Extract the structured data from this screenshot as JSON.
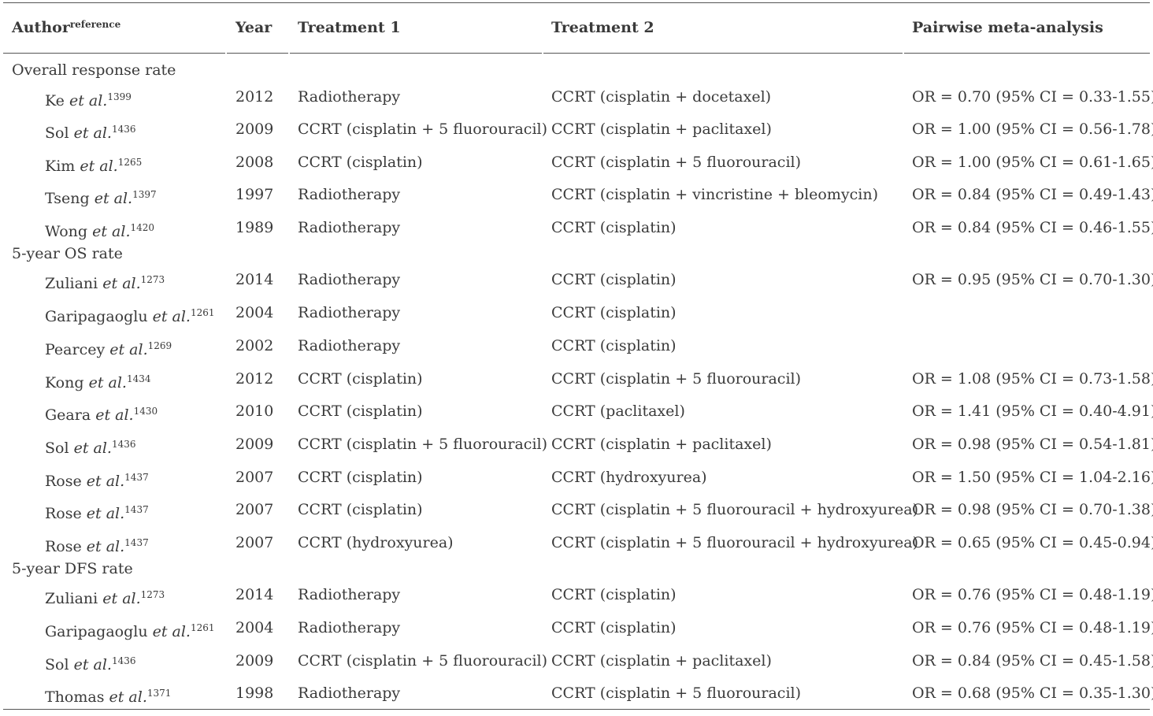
{
  "header": {
    "author": "Author",
    "author_sup": "reference",
    "year": "Year",
    "treatment1": "Treatment 1",
    "treatment2": "Treatment 2",
    "pairwise": "Pairwise meta-analysis"
  },
  "sections": [
    {
      "title": "Overall response rate",
      "rows": [
        {
          "author": "Ke",
          "etal": "et al.",
          "ref": "1399",
          "year": "2012",
          "t1": "Radiotherapy",
          "t2": "CCRT (cisplatin + docetaxel)",
          "pm": "OR = 0.70 (95% CI = 0.33-1.55)"
        },
        {
          "author": "Sol",
          "etal": "et al.",
          "ref": "1436",
          "year": "2009",
          "t1": "CCRT (cisplatin + 5 fluorouracil)",
          "t2": "CCRT (cisplatin + paclitaxel)",
          "pm": "OR = 1.00 (95% CI = 0.56-1.78)"
        },
        {
          "author": "Kim",
          "etal": "et al.",
          "ref": "1265",
          "year": "2008",
          "t1": "CCRT (cisplatin)",
          "t2": "CCRT (cisplatin + 5 fluorouracil)",
          "pm": "OR = 1.00 (95% CI = 0.61-1.65)"
        },
        {
          "author": "Tseng",
          "etal": "et al.",
          "ref": "1397",
          "year": "1997",
          "t1": "Radiotherapy",
          "t2": "CCRT (cisplatin + vincristine + bleomycin)",
          "pm": "OR = 0.84 (95% CI = 0.49-1.43)"
        },
        {
          "author": "Wong",
          "etal": "et al.",
          "ref": "1420",
          "year": "1989",
          "t1": "Radiotherapy",
          "t2": "CCRT (cisplatin)",
          "pm": "OR = 0.84 (95% CI = 0.46-1.55)"
        }
      ]
    },
    {
      "title": "5-year OS rate",
      "rows": [
        {
          "author": "Zuliani",
          "etal": "et al.",
          "ref": "1273",
          "year": "2014",
          "t1": "Radiotherapy",
          "t2": "CCRT (cisplatin)",
          "pm": "OR = 0.95 (95% CI = 0.70-1.30)"
        },
        {
          "author": "Garipagaoglu",
          "etal": "et al.",
          "ref": "1261",
          "year": "2004",
          "t1": "Radiotherapy",
          "t2": "CCRT (cisplatin)",
          "pm": ""
        },
        {
          "author": "Pearcey",
          "etal": "et al.",
          "ref": "1269",
          "year": "2002",
          "t1": "Radiotherapy",
          "t2": "CCRT (cisplatin)",
          "pm": ""
        },
        {
          "author": "Kong",
          "etal": "et al.",
          "ref": "1434",
          "year": "2012",
          "t1": "CCRT (cisplatin)",
          "t2": "CCRT (cisplatin + 5 fluorouracil)",
          "pm": "OR = 1.08 (95% CI = 0.73-1.58)"
        },
        {
          "author": "Geara",
          "etal": "et al.",
          "ref": "1430",
          "year": "2010",
          "t1": "CCRT (cisplatin)",
          "t2": "CCRT (paclitaxel)",
          "pm": "OR = 1.41 (95% CI = 0.40-4.91)"
        },
        {
          "author": "Sol",
          "etal": "et al.",
          "ref": "1436",
          "year": "2009",
          "t1": "CCRT (cisplatin + 5 fluorouracil)",
          "t2": "CCRT (cisplatin + paclitaxel)",
          "pm": "OR = 0.98 (95% CI = 0.54-1.81)"
        },
        {
          "author": "Rose",
          "etal": "et al.",
          "ref": "1437",
          "year": "2007",
          "t1": "CCRT (cisplatin)",
          "t2": "CCRT (hydroxyurea)",
          "pm": "OR = 1.50 (95% CI = 1.04-2.16)"
        },
        {
          "author": "Rose",
          "etal": "et al.",
          "ref": "1437",
          "year": "2007",
          "t1": "CCRT (cisplatin)",
          "t2": "CCRT (cisplatin + 5 fluorouracil + hydroxyurea)",
          "pm": "OR = 0.98 (95% CI = 0.70-1.38)"
        },
        {
          "author": "Rose",
          "etal": "et al.",
          "ref": "1437",
          "year": "2007",
          "t1": "CCRT (hydroxyurea)",
          "t2": "CCRT (cisplatin + 5 fluorouracil + hydroxyurea)",
          "pm": "OR = 0.65 (95% CI = 0.45-0.94)"
        }
      ]
    },
    {
      "title": "5-year DFS rate",
      "rows": [
        {
          "author": "Zuliani",
          "etal": "et al.",
          "ref": "1273",
          "year": "2014",
          "t1": "Radiotherapy",
          "t2": "CCRT (cisplatin)",
          "pm": "OR = 0.76 (95% CI = 0.48-1.19)"
        },
        {
          "author": "Garipagaoglu",
          "etal": "et al.",
          "ref": "1261",
          "year": "2004",
          "t1": "Radiotherapy",
          "t2": "CCRT (cisplatin)",
          "pm": "OR = 0.76 (95% CI = 0.48-1.19)"
        },
        {
          "author": "Sol",
          "etal": "et al.",
          "ref": "1436",
          "year": "2009",
          "t1": "CCRT (cisplatin + 5 fluorouracil)",
          "t2": "CCRT (cisplatin + paclitaxel)",
          "pm": "OR = 0.84 (95% CI = 0.45-1.58)"
        },
        {
          "author": "Thomas",
          "etal": "et al.",
          "ref": "1371",
          "year": "1998",
          "t1": "Radiotherapy",
          "t2": "CCRT (cisplatin + 5 fluorouracil)",
          "pm": "OR = 0.68 (95% CI = 0.35-1.30)"
        }
      ]
    }
  ]
}
